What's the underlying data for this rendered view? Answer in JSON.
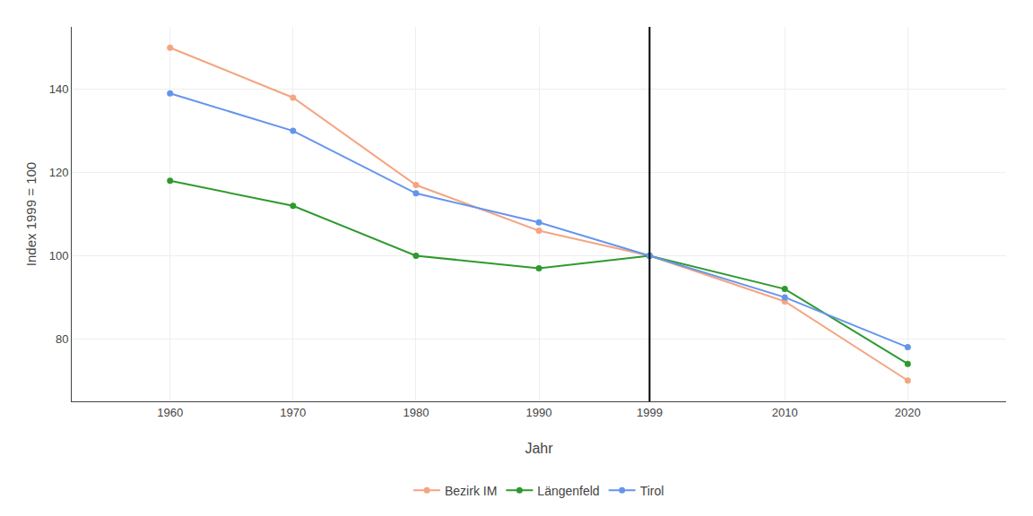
{
  "chart_data": {
    "type": "line",
    "x": [
      1960,
      1970,
      1980,
      1990,
      1999,
      2010,
      2020
    ],
    "series": [
      {
        "name": "Bezirk IM",
        "color": "#F4A582",
        "values": [
          150,
          138,
          117,
          106,
          100,
          89,
          70
        ]
      },
      {
        "name": "Längenfeld",
        "color": "#2E9A2E",
        "values": [
          118,
          112,
          100,
          97,
          100,
          92,
          74
        ]
      },
      {
        "name": "Tirol",
        "color": "#6495ED",
        "values": [
          139,
          130,
          115,
          108,
          100,
          90,
          78
        ]
      }
    ],
    "x_label": "Jahr",
    "y_label": "Index 1999 = 100",
    "vline": 1999,
    "xlim": [
      1952,
      2028
    ],
    "xticks": [
      1960,
      1970,
      1980,
      1990,
      1999,
      2010,
      2020
    ],
    "ylim": [
      65,
      155
    ],
    "yticks": [
      80,
      100,
      120,
      140
    ],
    "grid": true,
    "legend": "bottom",
    "marker": "circle",
    "line_style": "solid"
  }
}
